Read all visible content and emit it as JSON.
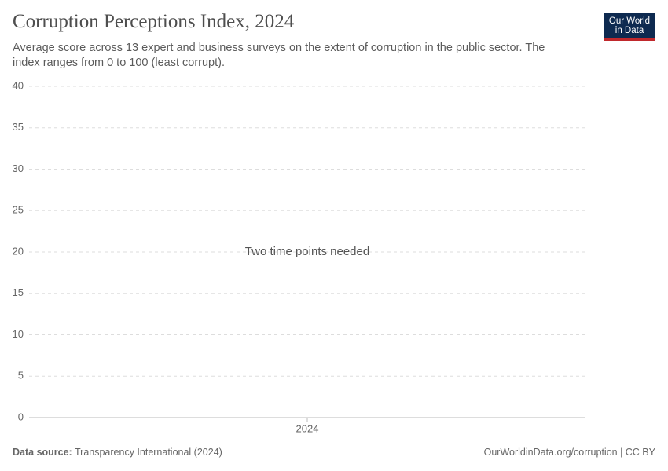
{
  "chart_data": {
    "type": "line",
    "title": "Corruption Perceptions Index, 2024",
    "subtitle": "Average score across 13 expert and business surveys on the extent of corruption in the public sector. The index ranges from 0 to 100 (least corrupt).",
    "annotation": "Two time points needed",
    "categories": [
      "2024"
    ],
    "series": [],
    "ylim": [
      0,
      40
    ],
    "yticks": [
      0,
      5,
      10,
      15,
      20,
      25,
      30,
      35,
      40
    ],
    "grid": true,
    "logo": [
      "Our World",
      "in Data"
    ],
    "source_label": "Data source:",
    "source": "Transparency International (2024)",
    "link": "OurWorldinData.org/corruption | CC BY"
  }
}
